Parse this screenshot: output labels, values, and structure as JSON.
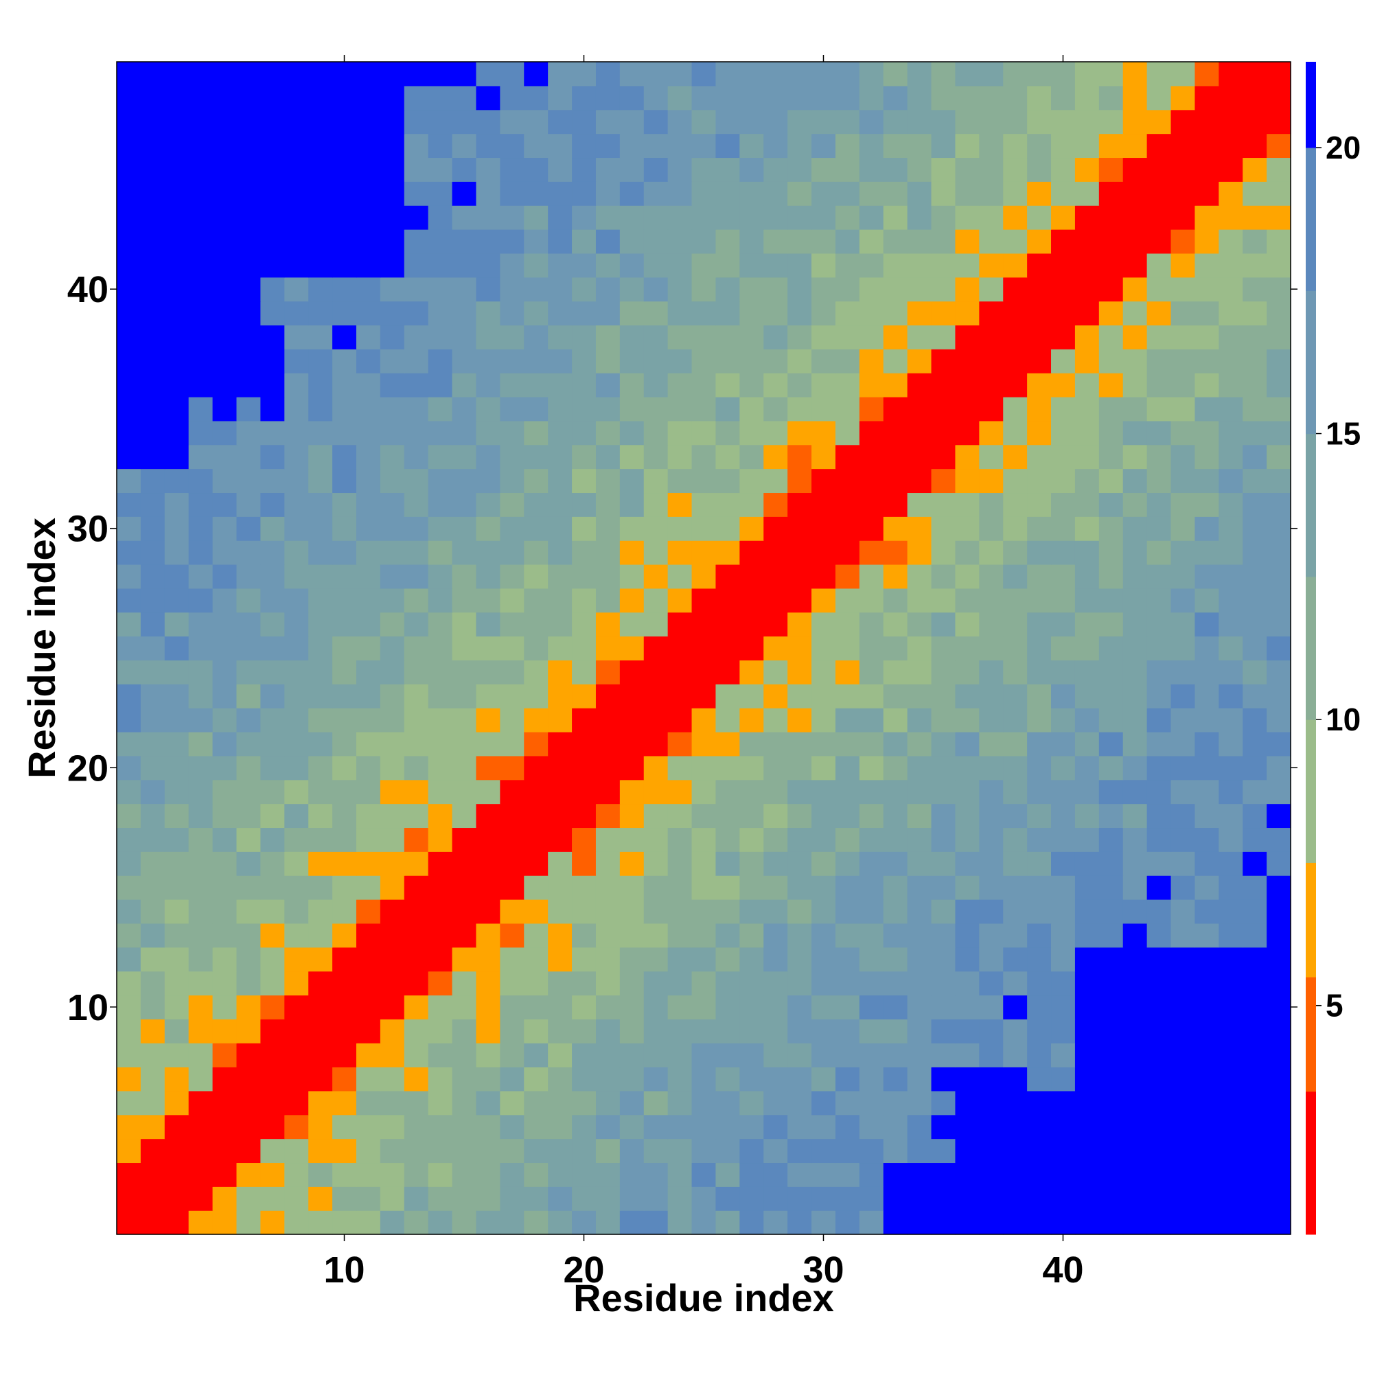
{
  "chart_data": {
    "type": "heatmap",
    "title": "",
    "xlabel": "Residue index",
    "ylabel": "Residue index",
    "x_range": [
      1,
      49
    ],
    "y_range": [
      1,
      49
    ],
    "x_ticks": [
      10,
      20,
      30,
      40
    ],
    "y_ticks": [
      10,
      20,
      30,
      40
    ],
    "colorbar": {
      "range": [
        1,
        21.5
      ],
      "ticks": [
        5,
        10,
        15,
        20
      ],
      "levels": [
        {
          "max": 3.5,
          "color": "#ff0000"
        },
        {
          "max": 5.5,
          "color": "#ff6000"
        },
        {
          "max": 7.5,
          "color": "#ffa500"
        },
        {
          "max": 10.0,
          "color": "#9bbc8a"
        },
        {
          "max": 12.5,
          "color": "#8aae96"
        },
        {
          "max": 15.0,
          "color": "#7aa3a6"
        },
        {
          "max": 17.5,
          "color": "#6e98b4"
        },
        {
          "max": 20.0,
          "color": "#5b88bd"
        },
        {
          "max": 21.5,
          "color": "#0000ff"
        }
      ]
    },
    "grid": false,
    "description_of_values": "Symmetric residue-residue distance matrix; near-diagonal distances are small (red), far residues large (blue)."
  }
}
